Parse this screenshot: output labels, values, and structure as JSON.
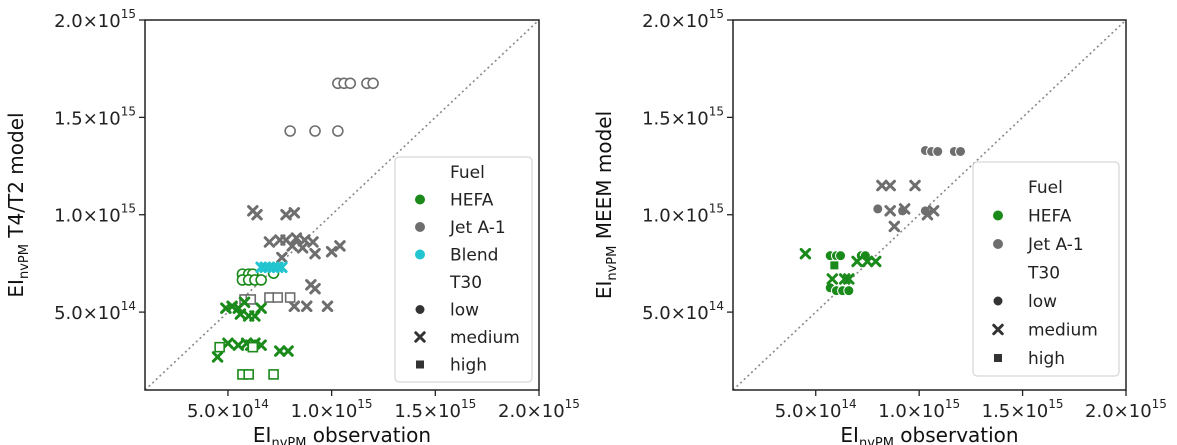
{
  "chart_data": [
    {
      "type": "scatter",
      "title": "",
      "xlabel": {
        "main": "EI",
        "sub": "nvPM",
        "rest": " observation"
      },
      "ylabel": {
        "main": "EI",
        "sub": "nvPM",
        "rest": " T4/T2 model"
      },
      "xlim": [
        100000000000000,
        2000000000000000
      ],
      "ylim": [
        100000000000000,
        2000000000000000
      ],
      "xticks": [
        {
          "value": 500000000000000,
          "mant": "5.0×10",
          "exp": "14"
        },
        {
          "value": 1000000000000000,
          "mant": "1.0×10",
          "exp": "15"
        },
        {
          "value": 1500000000000000,
          "mant": "1.5×10",
          "exp": "15"
        },
        {
          "value": 2000000000000000,
          "mant": "2.0×10",
          "exp": "15"
        }
      ],
      "yticks": [
        {
          "value": 500000000000000,
          "mant": "5.0×10",
          "exp": "14"
        },
        {
          "value": 1000000000000000,
          "mant": "1.0×10",
          "exp": "15"
        },
        {
          "value": 1500000000000000,
          "mant": "1.5×10",
          "exp": "15"
        },
        {
          "value": 2000000000000000,
          "mant": "2.0×10",
          "exp": "15"
        }
      ],
      "identity_line": true,
      "legend": {
        "position": "lower-right",
        "entries": [
          {
            "label": "Fuel",
            "kind": "title"
          },
          {
            "label": "HEFA",
            "kind": "color",
            "color": "#1a8a1a"
          },
          {
            "label": "Jet A-1",
            "kind": "color",
            "color": "#6e6e6e"
          },
          {
            "label": "Blend",
            "kind": "color",
            "color": "#22c4d0"
          },
          {
            "label": "T30",
            "kind": "title"
          },
          {
            "label": "low",
            "kind": "marker",
            "marker": "circle"
          },
          {
            "label": "medium",
            "kind": "marker",
            "marker": "x"
          },
          {
            "label": "high",
            "kind": "marker",
            "marker": "square"
          }
        ]
      },
      "series": [
        {
          "fuel": "Jet A-1",
          "t30": "low",
          "color": "#6e6e6e",
          "marker": "circle",
          "hollow": true,
          "points": [
            [
              1030000000000000.0,
              1675000000000000.0
            ],
            [
              1060000000000000.0,
              1675000000000000.0
            ],
            [
              1090000000000000.0,
              1675000000000000.0
            ],
            [
              1170000000000000.0,
              1675000000000000.0
            ],
            [
              1200000000000000.0,
              1675000000000000.0
            ],
            [
              800000000000000.0,
              1430000000000000.0
            ],
            [
              920000000000000.0,
              1430000000000000.0
            ],
            [
              1030000000000000.0,
              1430000000000000.0
            ]
          ]
        },
        {
          "fuel": "Jet A-1",
          "t30": "medium",
          "color": "#6e6e6e",
          "marker": "x",
          "points": [
            [
              620000000000000.0,
              1020000000000000.0
            ],
            [
              640000000000000.0,
              1000000000000000.0
            ],
            [
              780000000000000.0,
              1000000000000000.0
            ],
            [
              820000000000000.0,
              1010000000000000.0
            ],
            [
              700000000000000.0,
              860000000000000.0
            ],
            [
              750000000000000.0,
              870000000000000.0
            ],
            [
              780000000000000.0,
              870000000000000.0
            ],
            [
              830000000000000.0,
              880000000000000.0
            ],
            [
              870000000000000.0,
              870000000000000.0
            ],
            [
              910000000000000.0,
              860000000000000.0
            ],
            [
              860000000000000.0,
              830000000000000.0
            ],
            [
              810000000000000.0,
              840000000000000.0
            ],
            [
              920000000000000.0,
              800000000000000.0
            ],
            [
              760000000000000.0,
              780000000000000.0
            ],
            [
              1000000000000000.0,
              810000000000000.0
            ],
            [
              1040000000000000.0,
              840000000000000.0
            ],
            [
              900000000000000.0,
              640000000000000.0
            ],
            [
              920000000000000.0,
              620000000000000.0
            ],
            [
              820000000000000.0,
              530000000000000.0
            ],
            [
              880000000000000.0,
              530000000000000.0
            ],
            [
              980000000000000.0,
              530000000000000.0
            ]
          ]
        },
        {
          "fuel": "Jet A-1",
          "t30": "high",
          "color": "#6e6e6e",
          "marker": "square",
          "hollow": true,
          "points": [
            [
              580000000000000.0,
              565000000000000.0
            ],
            [
              610000000000000.0,
              565000000000000.0
            ],
            [
              700000000000000.0,
              575000000000000.0
            ],
            [
              740000000000000.0,
              575000000000000.0
            ],
            [
              800000000000000.0,
              575000000000000.0
            ]
          ]
        },
        {
          "fuel": "HEFA",
          "t30": "low",
          "color": "#1a8a1a",
          "marker": "circle",
          "hollow": true,
          "points": [
            [
              570000000000000.0,
              695000000000000.0
            ],
            [
              600000000000000.0,
              695000000000000.0
            ],
            [
              620000000000000.0,
              695000000000000.0
            ],
            [
              570000000000000.0,
              665000000000000.0
            ],
            [
              600000000000000.0,
              665000000000000.0
            ],
            [
              630000000000000.0,
              665000000000000.0
            ],
            [
              660000000000000.0,
              665000000000000.0
            ],
            [
              720000000000000.0,
              700000000000000.0
            ]
          ]
        },
        {
          "fuel": "HEFA",
          "t30": "medium",
          "color": "#1a8a1a",
          "marker": "x",
          "points": [
            [
              490000000000000.0,
              520000000000000.0
            ],
            [
              520000000000000.0,
              530000000000000.0
            ],
            [
              550000000000000.0,
              520000000000000.0
            ],
            [
              560000000000000.0,
              490000000000000.0
            ],
            [
              600000000000000.0,
              480000000000000.0
            ],
            [
              630000000000000.0,
              480000000000000.0
            ],
            [
              580000000000000.0,
              550000000000000.0
            ],
            [
              660000000000000.0,
              520000000000000.0
            ],
            [
              500000000000000.0,
              340000000000000.0
            ],
            [
              550000000000000.0,
              330000000000000.0
            ],
            [
              590000000000000.0,
              340000000000000.0
            ],
            [
              610000000000000.0,
              330000000000000.0
            ],
            [
              630000000000000.0,
              340000000000000.0
            ],
            [
              660000000000000.0,
              330000000000000.0
            ],
            [
              750000000000000.0,
              300000000000000.0
            ],
            [
              790000000000000.0,
              300000000000000.0
            ],
            [
              450000000000000.0,
              270000000000000.0
            ]
          ]
        },
        {
          "fuel": "HEFA",
          "t30": "high",
          "color": "#1a8a1a",
          "marker": "square",
          "hollow": true,
          "points": [
            [
              460000000000000.0,
              320000000000000.0
            ],
            [
              570000000000000.0,
              180000000000000.0
            ],
            [
              600000000000000.0,
              180000000000000.0
            ],
            [
              720000000000000.0,
              180000000000000.0
            ],
            [
              620000000000000.0,
              320000000000000.0
            ]
          ]
        },
        {
          "fuel": "Blend",
          "t30": "medium",
          "color": "#22c4d0",
          "marker": "x",
          "points": [
            [
              660000000000000.0,
              730000000000000.0
            ],
            [
              680000000000000.0,
              730000000000000.0
            ],
            [
              700000000000000.0,
              730000000000000.0
            ],
            [
              720000000000000.0,
              730000000000000.0
            ],
            [
              740000000000000.0,
              730000000000000.0
            ],
            [
              760000000000000.0,
              730000000000000.0
            ]
          ]
        }
      ]
    },
    {
      "type": "scatter",
      "title": "",
      "xlabel": {
        "main": "EI",
        "sub": "nvPM",
        "rest": " observation"
      },
      "ylabel": {
        "main": "EI",
        "sub": "nvPM",
        "rest": " MEEM model"
      },
      "xlim": [
        100000000000000,
        2000000000000000
      ],
      "ylim": [
        100000000000000,
        2000000000000000
      ],
      "xticks": [
        {
          "value": 500000000000000,
          "mant": "5.0×10",
          "exp": "14"
        },
        {
          "value": 1000000000000000,
          "mant": "1.0×10",
          "exp": "15"
        },
        {
          "value": 1500000000000000,
          "mant": "1.5×10",
          "exp": "15"
        },
        {
          "value": 2000000000000000,
          "mant": "2.0×10",
          "exp": "15"
        }
      ],
      "yticks": [
        {
          "value": 500000000000000,
          "mant": "5.0×10",
          "exp": "14"
        },
        {
          "value": 1000000000000000,
          "mant": "1.0×10",
          "exp": "15"
        },
        {
          "value": 1500000000000000,
          "mant": "1.5×10",
          "exp": "15"
        },
        {
          "value": 2000000000000000,
          "mant": "2.0×10",
          "exp": "15"
        }
      ],
      "identity_line": true,
      "legend": {
        "position": "lower-right",
        "entries": [
          {
            "label": "Fuel",
            "kind": "title"
          },
          {
            "label": "HEFA",
            "kind": "color",
            "color": "#1a8a1a"
          },
          {
            "label": "Jet A-1",
            "kind": "color",
            "color": "#6e6e6e"
          },
          {
            "label": "T30",
            "kind": "title"
          },
          {
            "label": "low",
            "kind": "marker",
            "marker": "circle"
          },
          {
            "label": "medium",
            "kind": "marker",
            "marker": "x"
          },
          {
            "label": "high",
            "kind": "marker",
            "marker": "square"
          }
        ]
      },
      "series": [
        {
          "fuel": "Jet A-1",
          "t30": "low",
          "color": "#6e6e6e",
          "marker": "circle",
          "points": [
            [
              1030000000000000.0,
              1330000000000000.0
            ],
            [
              1060000000000000.0,
              1325000000000000.0
            ],
            [
              1090000000000000.0,
              1325000000000000.0
            ],
            [
              1170000000000000.0,
              1325000000000000.0
            ],
            [
              1200000000000000.0,
              1325000000000000.0
            ],
            [
              800000000000000.0,
              1030000000000000.0
            ],
            [
              920000000000000.0,
              1020000000000000.0
            ],
            [
              1030000000000000.0,
              1020000000000000.0
            ]
          ]
        },
        {
          "fuel": "Jet A-1",
          "t30": "medium",
          "color": "#6e6e6e",
          "marker": "x",
          "points": [
            [
              820000000000000.0,
              1150000000000000.0
            ],
            [
              860000000000000.0,
              1150000000000000.0
            ],
            [
              980000000000000.0,
              1150000000000000.0
            ],
            [
              860000000000000.0,
              1020000000000000.0
            ],
            [
              930000000000000.0,
              1030000000000000.0
            ],
            [
              880000000000000.0,
              940000000000000.0
            ],
            [
              1040000000000000.0,
              1000000000000000.0
            ],
            [
              1070000000000000.0,
              1020000000000000.0
            ]
          ]
        },
        {
          "fuel": "HEFA",
          "t30": "low",
          "color": "#1a8a1a",
          "marker": "circle",
          "points": [
            [
              570000000000000.0,
              790000000000000.0
            ],
            [
              600000000000000.0,
              790000000000000.0
            ],
            [
              620000000000000.0,
              790000000000000.0
            ],
            [
              720000000000000.0,
              790000000000000.0
            ],
            [
              740000000000000.0,
              790000000000000.0
            ],
            [
              570000000000000.0,
              625000000000000.0
            ],
            [
              600000000000000.0,
              610000000000000.0
            ],
            [
              630000000000000.0,
              610000000000000.0
            ],
            [
              660000000000000.0,
              610000000000000.0
            ]
          ]
        },
        {
          "fuel": "HEFA",
          "t30": "medium",
          "color": "#1a8a1a",
          "marker": "x",
          "points": [
            [
              450000000000000.0,
              800000000000000.0
            ],
            [
              580000000000000.0,
              670000000000000.0
            ],
            [
              640000000000000.0,
              670000000000000.0
            ],
            [
              700000000000000.0,
              760000000000000.0
            ],
            [
              750000000000000.0,
              760000000000000.0
            ],
            [
              790000000000000.0,
              760000000000000.0
            ],
            [
              660000000000000.0,
              670000000000000.0
            ]
          ]
        },
        {
          "fuel": "HEFA",
          "t30": "high",
          "color": "#1a8a1a",
          "marker": "square",
          "points": [
            [
              590000000000000.0,
              740000000000000.0
            ]
          ]
        }
      ]
    }
  ]
}
